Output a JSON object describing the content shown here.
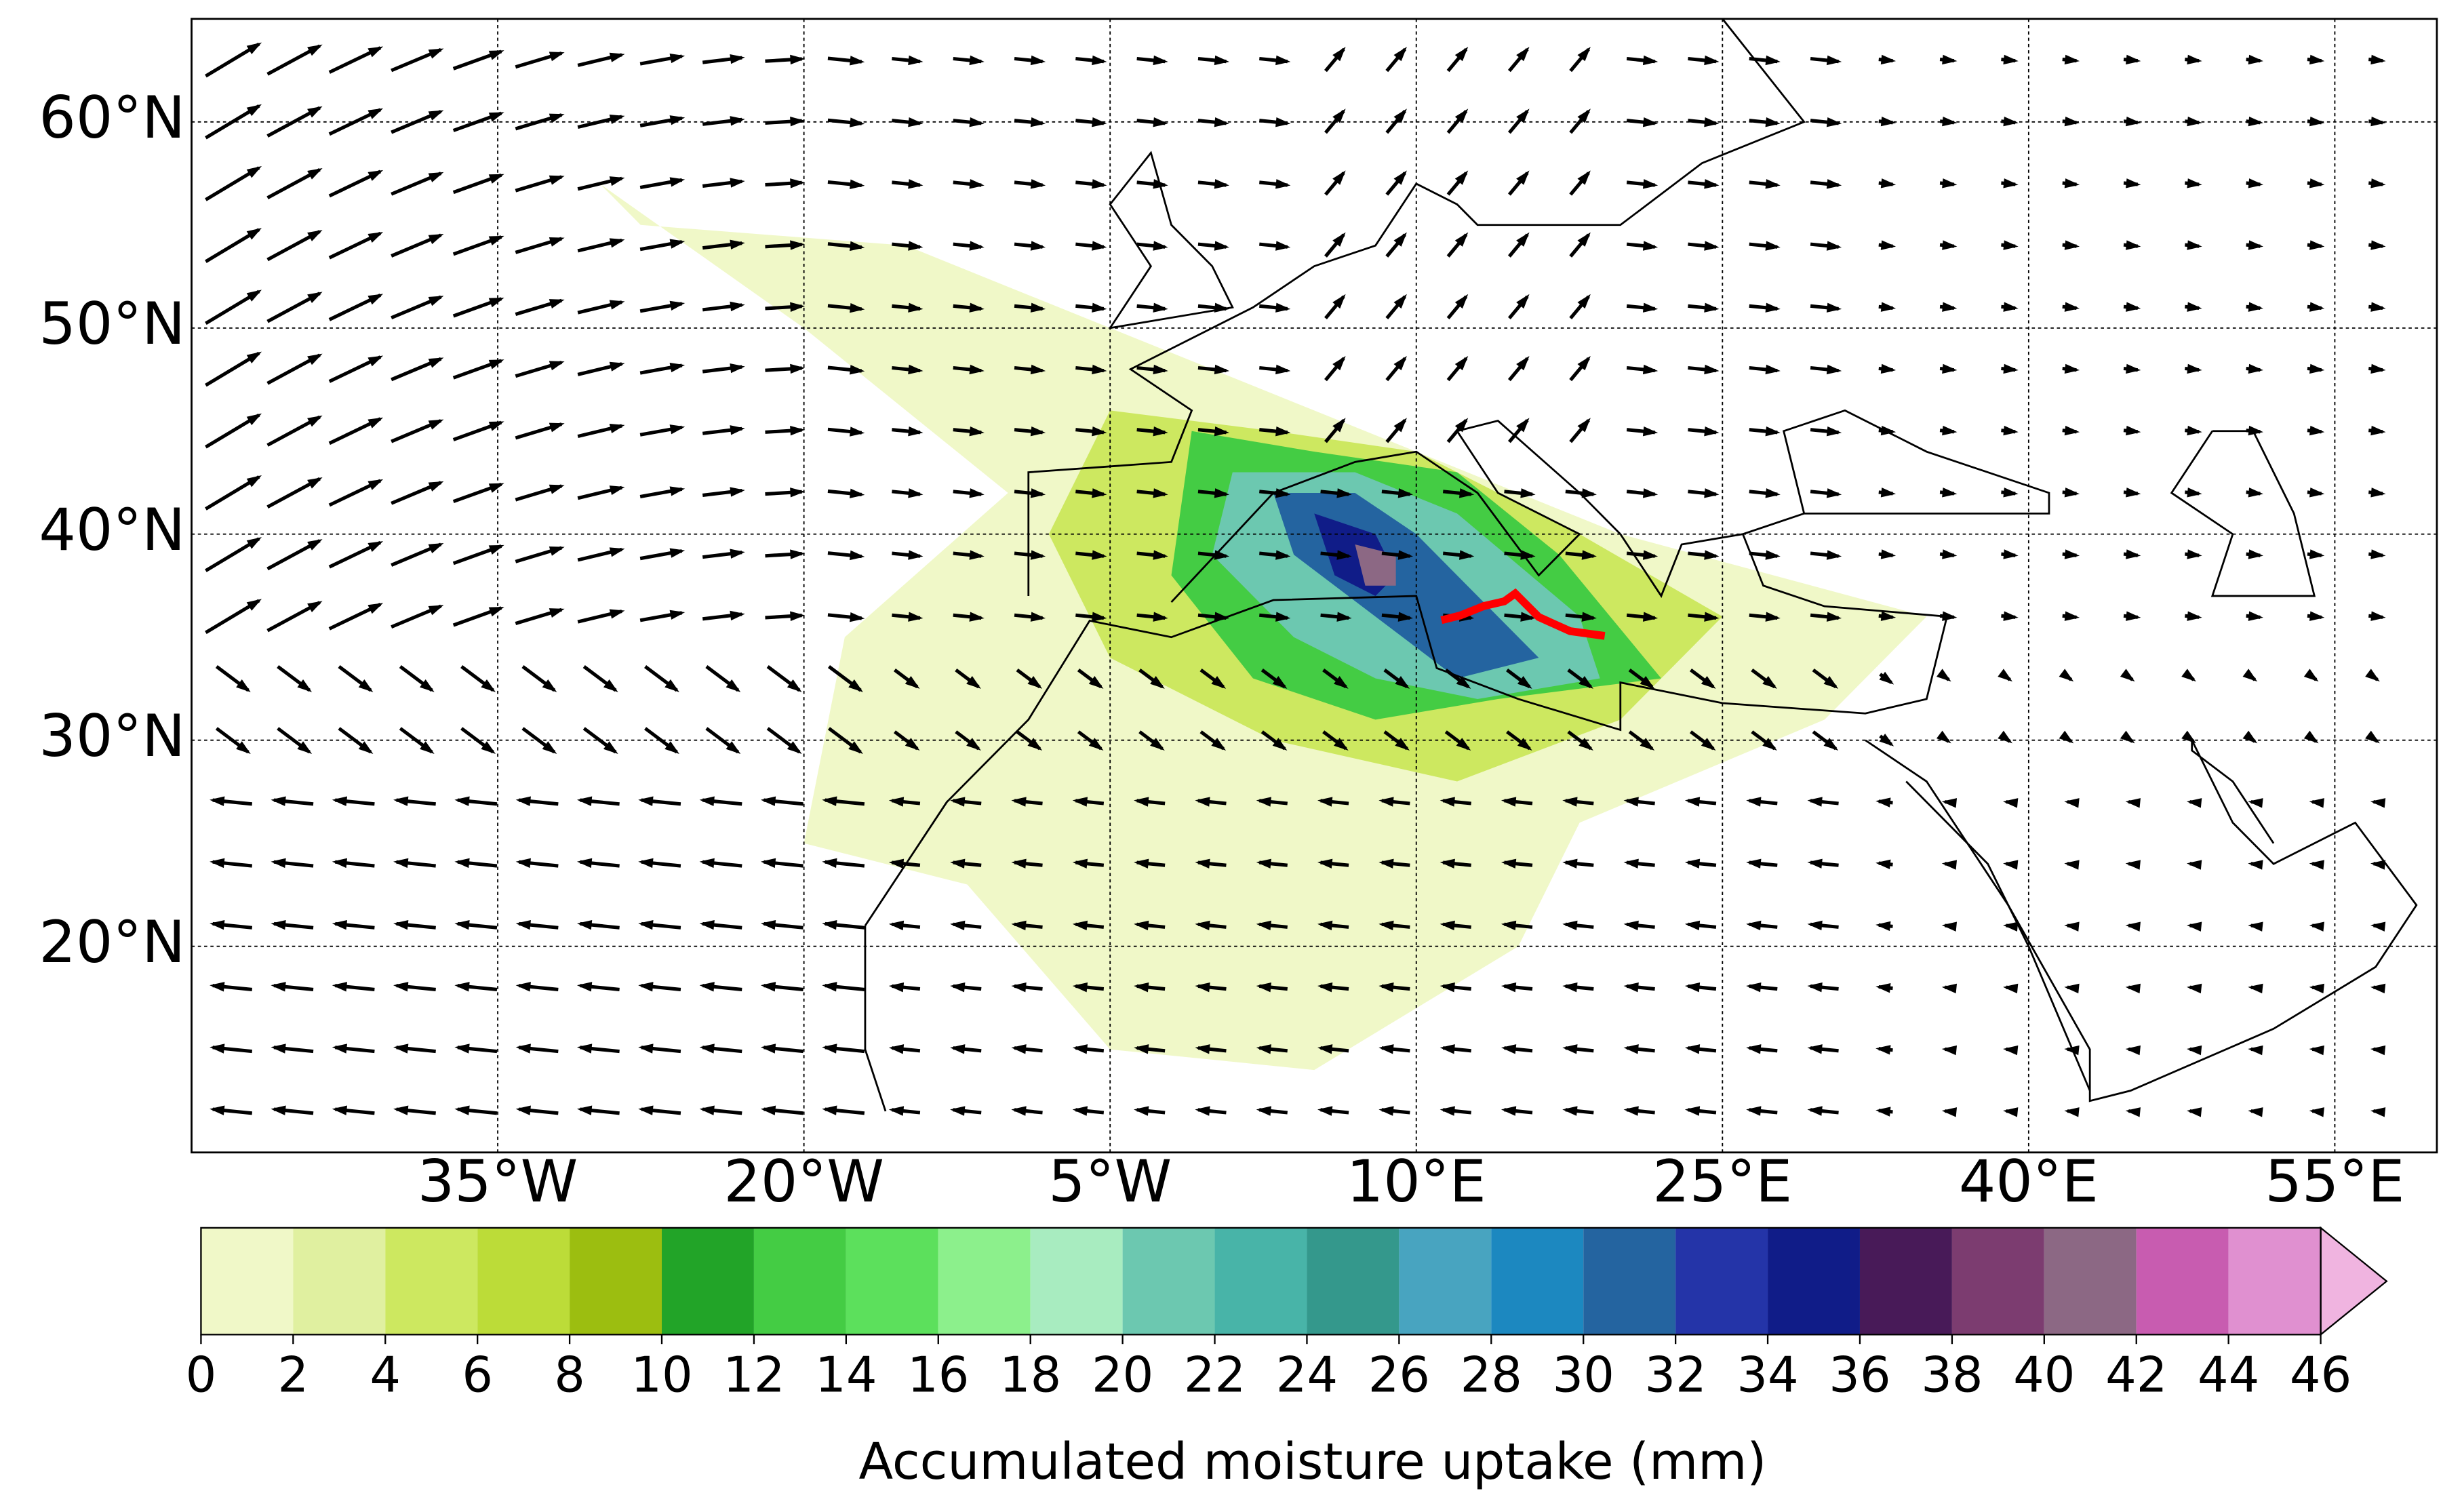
{
  "map": {
    "xlim": [
      -50,
      60
    ],
    "ylim": [
      10,
      65
    ],
    "lon_ticks": [
      {
        "value": -35,
        "label": "35°W"
      },
      {
        "value": -20,
        "label": "20°W"
      },
      {
        "value": -5,
        "label": "5°W"
      },
      {
        "value": 10,
        "label": "10°E"
      },
      {
        "value": 25,
        "label": "25°E"
      },
      {
        "value": 40,
        "label": "40°E"
      },
      {
        "value": 55,
        "label": "55°E"
      }
    ],
    "lat_ticks": [
      {
        "value": 20,
        "label": "20°N"
      },
      {
        "value": 30,
        "label": "30°N"
      },
      {
        "value": 40,
        "label": "40°N"
      },
      {
        "value": 50,
        "label": "50°N"
      },
      {
        "value": 60,
        "label": "60°N"
      }
    ],
    "grid": true
  },
  "colorbar": {
    "label": "Accumulated moisture uptake (mm)",
    "levels": [
      0,
      2,
      4,
      6,
      8,
      10,
      12,
      14,
      16,
      18,
      20,
      22,
      24,
      26,
      28,
      30,
      32,
      34,
      36,
      38,
      40,
      42,
      44,
      46
    ],
    "colors": [
      "#f0f8c8",
      "#e0f0a0",
      "#cde860",
      "#bcdc38",
      "#9cbe10",
      "#22a428",
      "#44cc44",
      "#5ce05c",
      "#8cf08c",
      "#a8ecc0",
      "#6cc8b0",
      "#48b4a8",
      "#34988c",
      "#48a4c0",
      "#1c88c0",
      "#2464a0",
      "#2434a8",
      "#101c88",
      "#481a58",
      "#7c3c70",
      "#8c6884",
      "#c85cb0",
      "#e090d0"
    ],
    "extend_color": "#f0b4e0",
    "extend": "max"
  }
}
